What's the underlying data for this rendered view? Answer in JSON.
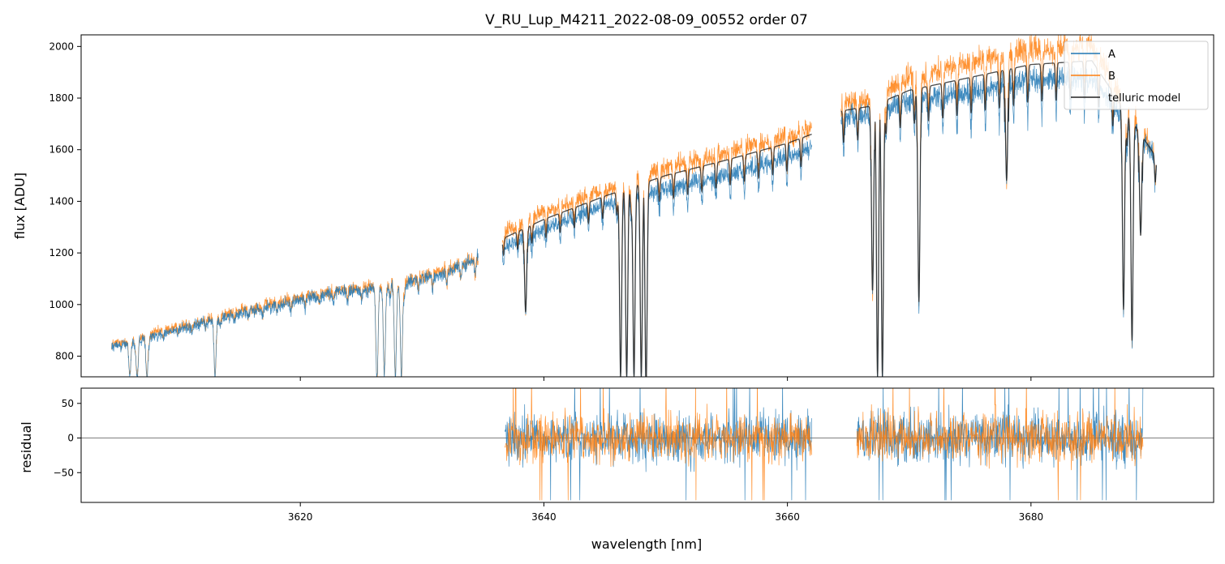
{
  "chart_data": [
    {
      "type": "line",
      "title": "V_RU_Lup_M4211_2022-08-09_00552  order 07",
      "ylabel": "flux [ADU]",
      "xlim": [
        3602,
        3695
      ],
      "ylim": [
        720,
        2045
      ],
      "yticks": [
        "800",
        "1000",
        "1200",
        "1400",
        "1600",
        "1800",
        "2000"
      ],
      "legend": {
        "placement": "top-right",
        "entries": [
          "A",
          "B",
          "telluric model"
        ]
      },
      "series": [
        {
          "name": "A",
          "color": "#1f77b4"
        },
        {
          "name": "B",
          "color": "#ff7f0e"
        },
        {
          "name": "telluric model",
          "color": "#222222"
        }
      ],
      "segments": [
        {
          "x": [
            3604.5,
            3615.0,
            3622.0,
            3628.0,
            3632.0,
            3634.6
          ],
          "A": [
            835,
            965,
            1040,
            1070,
            1125,
            1175
          ],
          "B": [
            845,
            975,
            1050,
            1080,
            1135,
            1180
          ]
        },
        {
          "x": [
            3636.6,
            3640.0,
            3645.0,
            3650.0,
            3655.0,
            3660.0,
            3662.0
          ],
          "A": [
            1225,
            1290,
            1385,
            1450,
            1505,
            1570,
            1610
          ],
          "B": [
            1280,
            1360,
            1440,
            1530,
            1590,
            1650,
            1690
          ],
          "telluric model": [
            1255,
            1330,
            1420,
            1500,
            1560,
            1625,
            1660
          ]
        },
        {
          "x": [
            3664.4,
            3667.0,
            3670.0,
            3675.0,
            3680.0,
            3685.0,
            3690.3
          ],
          "A": [
            1720,
            1740,
            1790,
            1820,
            1870,
            1880,
            1570
          ],
          "B": [
            1780,
            1800,
            1880,
            1940,
            1990,
            2000,
            1570
          ],
          "telluric model": [
            1750,
            1770,
            1830,
            1880,
            1930,
            1945,
            1570
          ]
        }
      ],
      "absorption_lines": [
        {
          "x": 3606.0,
          "min": 720
        },
        {
          "x": 3606.6,
          "min": 720
        },
        {
          "x": 3607.4,
          "min": 720
        },
        {
          "x": 3613.0,
          "min": 720
        },
        {
          "x": 3626.3,
          "min": 720
        },
        {
          "x": 3626.9,
          "min": 720
        },
        {
          "x": 3627.8,
          "min": 720
        },
        {
          "x": 3628.3,
          "min": 720
        },
        {
          "x": 3638.5,
          "min": 970
        },
        {
          "x": 3646.3,
          "min": 720
        },
        {
          "x": 3646.8,
          "min": 720
        },
        {
          "x": 3647.4,
          "min": 720
        },
        {
          "x": 3648.0,
          "min": 720
        },
        {
          "x": 3648.4,
          "min": 720
        },
        {
          "x": 3667.0,
          "min": 1100
        },
        {
          "x": 3667.4,
          "min": 720
        },
        {
          "x": 3667.8,
          "min": 720
        },
        {
          "x": 3670.8,
          "min": 1010
        },
        {
          "x": 3678.0,
          "min": 1480
        },
        {
          "x": 3687.6,
          "min": 980
        },
        {
          "x": 3688.3,
          "min": 860
        },
        {
          "x": 3689.0,
          "min": 1300
        }
      ]
    },
    {
      "type": "line",
      "xlabel": "wavelength [nm]",
      "ylabel": "residual",
      "xlim": [
        3602,
        3695
      ],
      "ylim": [
        -93,
        72
      ],
      "xticks": [
        "3620",
        "3640",
        "3660",
        "3680"
      ],
      "yticks": [
        "50",
        "0",
        "−50"
      ],
      "reference_line": 0,
      "series": [
        {
          "name": "A",
          "color": "#1f77b4"
        },
        {
          "name": "B",
          "color": "#ff7f0e"
        }
      ],
      "segments": [
        {
          "x": [
            3636.8,
            3662.0
          ],
          "mean": 0,
          "spread": 30
        },
        {
          "x": [
            3665.7,
            3689.2
          ],
          "mean": 0,
          "spread": 32
        }
      ]
    }
  ]
}
